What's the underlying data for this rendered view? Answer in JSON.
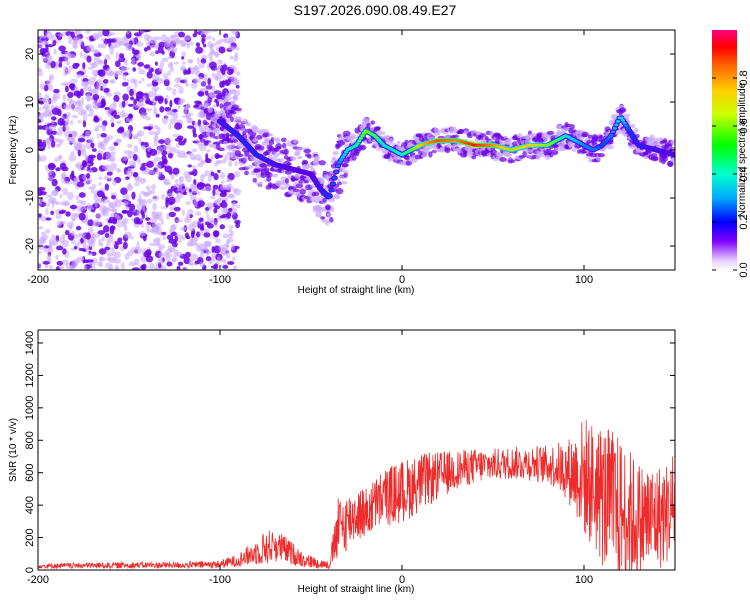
{
  "title": "S197.2026.090.08.49.E27",
  "colors": {
    "snr_line": "#ee2a2a",
    "spectro_dot_low": "#c9a6ff",
    "spectro_dot_high": "#6a00e6",
    "frame": "#000000"
  },
  "chart_data": [
    {
      "type": "heatmap",
      "name": "spectrogram",
      "xlabel": "Height of straight line (km)",
      "ylabel": "Frequency (Hz)",
      "xlim": [
        -200,
        150
      ],
      "ylim": [
        -25,
        25
      ],
      "x_ticks": [
        -200,
        -100,
        0,
        100
      ],
      "x_tick_labels": [
        "-200",
        "-100",
        "0",
        "100"
      ],
      "y_ticks": [
        20,
        10,
        0,
        -10,
        -20
      ],
      "y_tick_labels": [
        "20",
        "10",
        "0",
        "-10",
        "-20"
      ],
      "colorbar": {
        "label": "Normalized spectral amplitude",
        "range": [
          0,
          1
        ],
        "ticks": [
          0.0,
          0.2,
          0.4,
          0.6,
          0.8
        ],
        "tick_labels": [
          "0.0",
          "0.2",
          "0.4",
          "0.6",
          "0.8"
        ]
      },
      "ridge": {
        "x": [
          -110,
          -100,
          -90,
          -80,
          -70,
          -60,
          -50,
          -45,
          -40,
          -35,
          -30,
          -25,
          -20,
          -15,
          -10,
          -5,
          0,
          5,
          10,
          20,
          30,
          40,
          50,
          60,
          70,
          80,
          85,
          90,
          95,
          100,
          105,
          110,
          115,
          120,
          125,
          130,
          140,
          150
        ],
        "y": [
          8,
          6,
          3,
          -1,
          -3,
          -4,
          -5,
          -8,
          -10,
          -3,
          0,
          1,
          4,
          3,
          1,
          0,
          -1,
          0,
          1,
          2,
          2,
          1,
          1,
          0,
          1,
          1,
          2,
          3,
          2,
          1,
          0,
          1,
          3,
          7,
          4,
          1,
          0,
          -1
        ],
        "amplitude": [
          0.3,
          0.35,
          0.4,
          0.4,
          0.35,
          0.3,
          0.3,
          0.35,
          0.45,
          0.5,
          0.6,
          0.65,
          0.75,
          0.7,
          0.6,
          0.6,
          0.65,
          0.7,
          0.85,
          0.95,
          0.9,
          1.0,
          0.9,
          0.8,
          0.85,
          0.75,
          0.7,
          0.6,
          0.55,
          0.5,
          0.5,
          0.45,
          0.5,
          0.6,
          0.45,
          0.4,
          0.35,
          0.3
        ]
      }
    },
    {
      "type": "line",
      "name": "snr",
      "xlabel": "Height of straight line (km)",
      "ylabel": "SNR (10 * v/v)",
      "xlim": [
        -200,
        150
      ],
      "ylim": [
        0,
        1480
      ],
      "x_ticks": [
        -200,
        -100,
        0,
        100
      ],
      "x_tick_labels": [
        "-200",
        "-100",
        "0",
        "100"
      ],
      "y_ticks": [
        0,
        200,
        400,
        600,
        800,
        1000,
        1200,
        1400
      ],
      "y_tick_labels": [
        "0",
        "200",
        "400",
        "600",
        "800",
        "1000",
        "1200",
        "1400"
      ],
      "envelope": {
        "x": [
          -200,
          -150,
          -120,
          -100,
          -90,
          -80,
          -75,
          -70,
          -65,
          -60,
          -55,
          -50,
          -45,
          -40,
          -35,
          -30,
          -25,
          -20,
          -10,
          0,
          10,
          20,
          30,
          40,
          50,
          60,
          70,
          80,
          85,
          90,
          95,
          100,
          105,
          110,
          115,
          120,
          125,
          130,
          140,
          150
        ],
        "mean": [
          25,
          30,
          30,
          35,
          60,
          110,
          140,
          150,
          130,
          100,
          70,
          50,
          40,
          30,
          250,
          300,
          350,
          350,
          450,
          480,
          540,
          580,
          620,
          640,
          650,
          660,
          660,
          650,
          640,
          620,
          600,
          580,
          520,
          460,
          400,
          360,
          330,
          300,
          320,
          380
        ],
        "noise": [
          15,
          20,
          20,
          25,
          40,
          80,
          110,
          100,
          90,
          70,
          50,
          40,
          30,
          25,
          200,
          180,
          170,
          160,
          180,
          200,
          180,
          150,
          120,
          110,
          100,
          100,
          110,
          120,
          150,
          180,
          260,
          380,
          400,
          450,
          480,
          460,
          420,
          380,
          340,
          300
        ]
      }
    }
  ]
}
